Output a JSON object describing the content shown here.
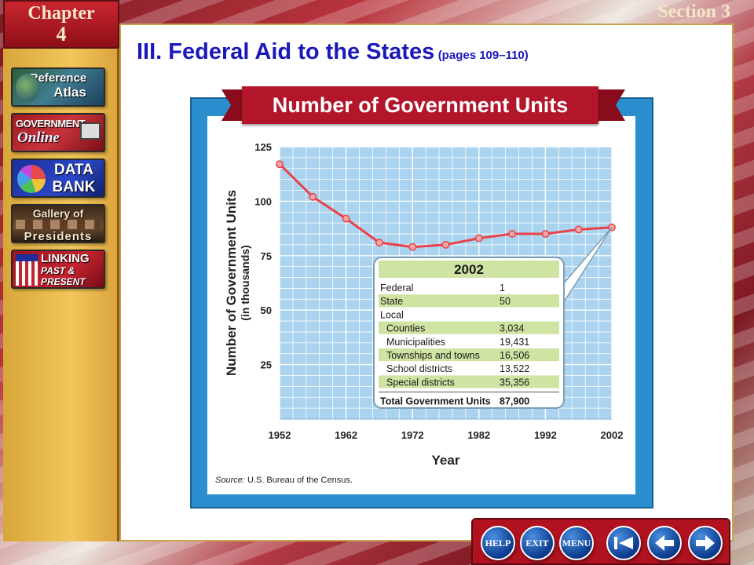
{
  "header": {
    "chapter_word": "Chapter",
    "chapter_number": "4",
    "section": "Section 3"
  },
  "sidebar": {
    "items": [
      {
        "line1": "Reference",
        "line2": "Atlas",
        "icon": "globe-icon"
      },
      {
        "line1": "GOVERNMENT",
        "line2": "Online",
        "icon": "computer-icon"
      },
      {
        "line1": "DATA",
        "line2": "BANK",
        "icon": "pie-chart-icon"
      },
      {
        "line1": "Gallery of",
        "line2": "Presidents",
        "icon": "portraits-icon"
      },
      {
        "line1": "LINKING",
        "line2": "PAST & PRESENT",
        "icon": "flag-icon"
      }
    ]
  },
  "slide": {
    "title": "III. Federal Aid to the States",
    "pages": "(pages 109–110)"
  },
  "chart_data": {
    "type": "line",
    "title": "Number of Government Units",
    "xlabel": "Year",
    "ylabel": "Number of Government Units",
    "ylabel2": "(in thousands)",
    "x_ticks": [
      "1952",
      "1962",
      "1972",
      "1982",
      "1992",
      "2002"
    ],
    "y_ticks": [
      "25",
      "50",
      "75",
      "100",
      "125"
    ],
    "xlim": [
      1952,
      2002
    ],
    "ylim": [
      0,
      125
    ],
    "grid": true,
    "series": [
      {
        "color": "#e8434a",
        "x": [
          1952,
          1957,
          1962,
          1967,
          1972,
          1977,
          1982,
          1987,
          1992,
          1997,
          2002
        ],
        "y": [
          117,
          102,
          92,
          81,
          79,
          80,
          83,
          85,
          85,
          87,
          88
        ]
      }
    ],
    "inset_table": {
      "title": "2002",
      "rows": [
        {
          "label": "Federal",
          "value": "1",
          "indent": false,
          "shaded": false
        },
        {
          "label": "State",
          "value": "50",
          "indent": false,
          "shaded": true
        },
        {
          "label": "Local",
          "value": "",
          "indent": false,
          "shaded": false
        },
        {
          "label": "Counties",
          "value": "3,034",
          "indent": true,
          "shaded": true
        },
        {
          "label": "Municipalities",
          "value": "19,431",
          "indent": true,
          "shaded": false
        },
        {
          "label": "Townships and towns",
          "value": "16,506",
          "indent": true,
          "shaded": true
        },
        {
          "label": "School districts",
          "value": "13,522",
          "indent": true,
          "shaded": false
        },
        {
          "label": "Special districts",
          "value": "35,356",
          "indent": true,
          "shaded": true
        }
      ],
      "total_label": "Total Government Units",
      "total_value": "87,900"
    },
    "source_label": "Source:",
    "source_text": "U.S. Bureau of the Census."
  },
  "nav": {
    "help": "HELP",
    "exit": "EXIT",
    "menu": "MENU"
  },
  "colors": {
    "title_blue": "#1a18b8",
    "banner_red": "#b3152a",
    "frame_blue": "#2b8fcf",
    "plot_bg": "#a9d3ee",
    "table_green": "#cfe3a3"
  }
}
